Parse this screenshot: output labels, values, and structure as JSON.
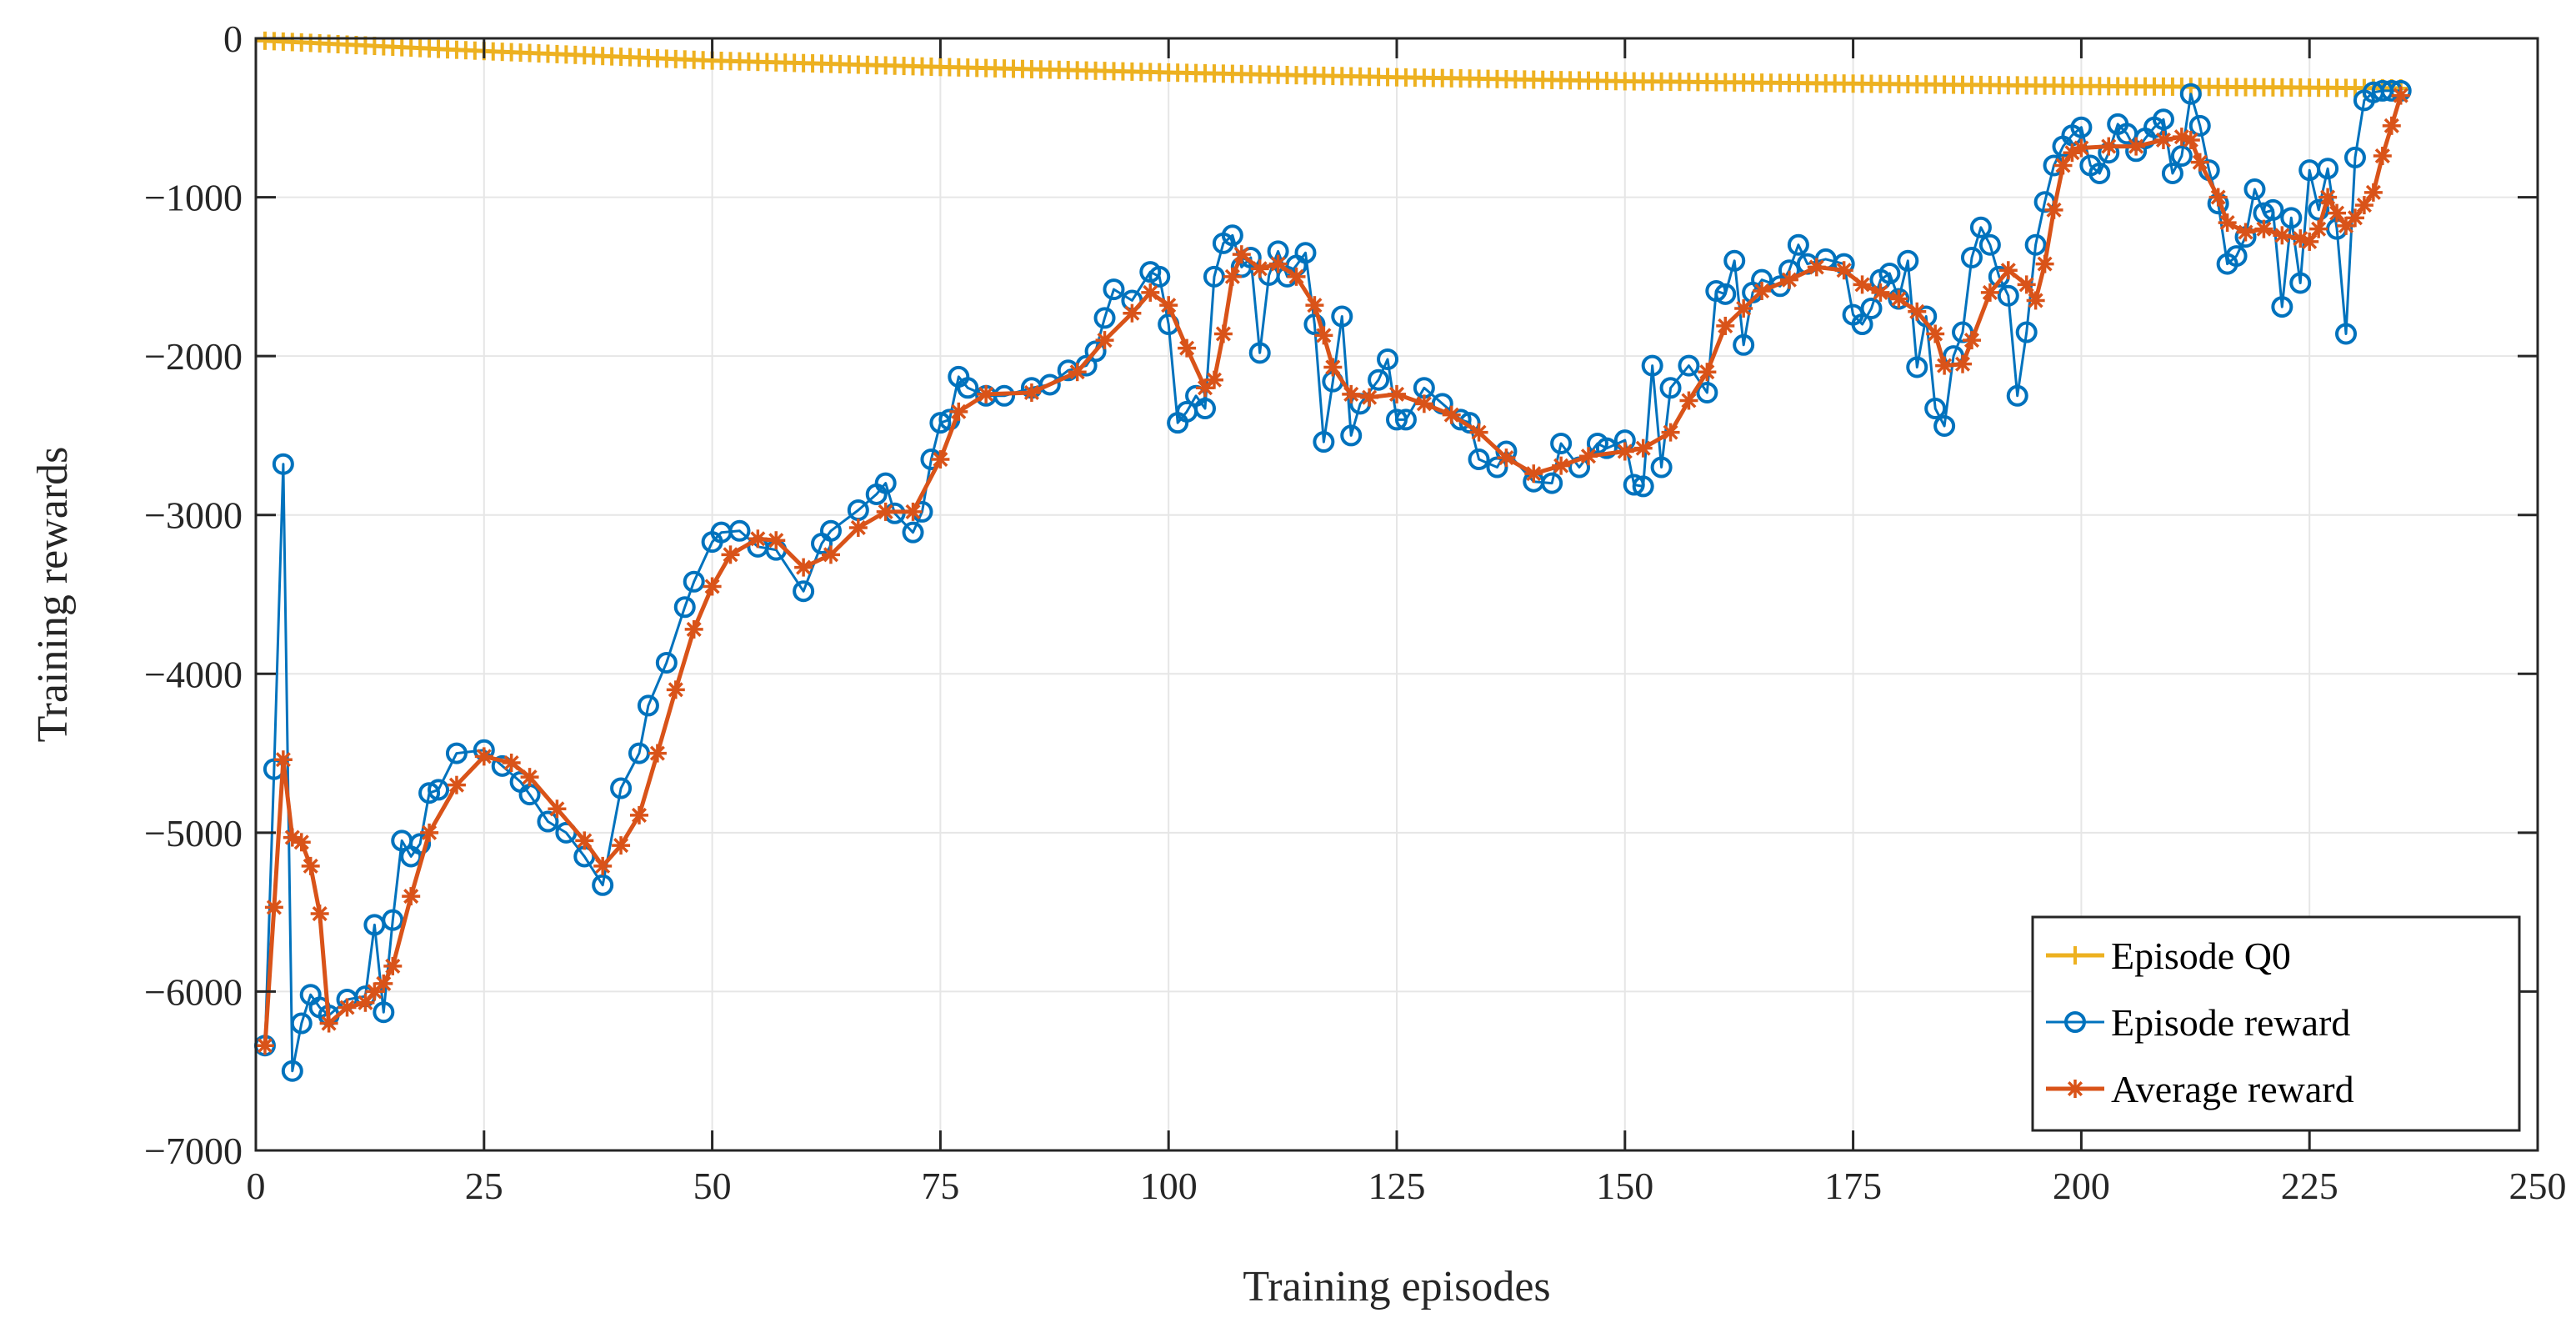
{
  "chart_data": {
    "type": "line",
    "title": "",
    "xlabel": "Training episodes",
    "ylabel": "Training rewards",
    "xlim": [
      0,
      250
    ],
    "ylim": [
      -7000,
      0
    ],
    "xticks": [
      0,
      25,
      50,
      75,
      100,
      125,
      150,
      175,
      200,
      225,
      250
    ],
    "yticks": [
      0,
      -1000,
      -2000,
      -3000,
      -4000,
      -5000,
      -6000,
      -7000
    ],
    "xtick_labels": [
      "0",
      "25",
      "50",
      "75",
      "100",
      "125",
      "150",
      "175",
      "200",
      "225",
      "250"
    ],
    "ytick_labels": [
      "0",
      "−1000",
      "−2000",
      "−3000",
      "−4000",
      "−5000",
      "−6000",
      "−7000"
    ],
    "grid": true,
    "legend_position": "bottom-right",
    "colors": {
      "q0": "#EDB120",
      "episode": "#0072BD",
      "average": "#D95319",
      "axis": "#262626",
      "grid": "#E6E6E6"
    },
    "series": [
      {
        "name": "Episode Q0",
        "marker": "plus",
        "points": [
          [
            1,
            -15
          ],
          [
            25,
            -80
          ],
          [
            50,
            -140
          ],
          [
            75,
            -180
          ],
          [
            100,
            -215
          ],
          [
            125,
            -245
          ],
          [
            150,
            -270
          ],
          [
            175,
            -285
          ],
          [
            200,
            -300
          ],
          [
            225,
            -310
          ],
          [
            235,
            -315
          ]
        ]
      },
      {
        "name": "Episode reward",
        "marker": "circle",
        "points": [
          [
            1,
            -6340
          ],
          [
            2,
            -4600
          ],
          [
            3,
            -2680
          ],
          [
            4,
            -6500
          ],
          [
            5,
            -6200
          ],
          [
            6,
            -6020
          ],
          [
            7,
            -6100
          ],
          [
            8,
            -6150
          ],
          [
            10,
            -6050
          ],
          [
            12,
            -6030
          ],
          [
            13,
            -5580
          ],
          [
            14,
            -6130
          ],
          [
            15,
            -5550
          ],
          [
            16,
            -5050
          ],
          [
            17,
            -5150
          ],
          [
            18,
            -5070
          ],
          [
            19,
            -4750
          ],
          [
            20,
            -4730
          ],
          [
            22,
            -4500
          ],
          [
            25,
            -4480
          ],
          [
            27,
            -4580
          ],
          [
            29,
            -4680
          ],
          [
            30,
            -4760
          ],
          [
            32,
            -4930
          ],
          [
            34,
            -5000
          ],
          [
            36,
            -5150
          ],
          [
            38,
            -5330
          ],
          [
            40,
            -4720
          ],
          [
            42,
            -4500
          ],
          [
            43,
            -4200
          ],
          [
            45,
            -3930
          ],
          [
            47,
            -3580
          ],
          [
            48,
            -3420
          ],
          [
            50,
            -3170
          ],
          [
            51,
            -3110
          ],
          [
            53,
            -3100
          ],
          [
            55,
            -3200
          ],
          [
            57,
            -3220
          ],
          [
            60,
            -3480
          ],
          [
            62,
            -3180
          ],
          [
            63,
            -3100
          ],
          [
            66,
            -2970
          ],
          [
            68,
            -2870
          ],
          [
            69,
            -2800
          ],
          [
            70,
            -2990
          ],
          [
            72,
            -3110
          ],
          [
            73,
            -2980
          ],
          [
            74,
            -2650
          ],
          [
            75,
            -2420
          ],
          [
            76,
            -2400
          ],
          [
            77,
            -2130
          ],
          [
            78,
            -2200
          ],
          [
            80,
            -2250
          ],
          [
            82,
            -2250
          ],
          [
            85,
            -2200
          ],
          [
            87,
            -2180
          ],
          [
            89,
            -2090
          ],
          [
            91,
            -2060
          ],
          [
            92,
            -1970
          ],
          [
            93,
            -1760
          ],
          [
            94,
            -1580
          ],
          [
            96,
            -1650
          ],
          [
            98,
            -1470
          ],
          [
            99,
            -1500
          ],
          [
            100,
            -1800
          ],
          [
            101,
            -2420
          ],
          [
            102,
            -2350
          ],
          [
            103,
            -2250
          ],
          [
            104,
            -2330
          ],
          [
            105,
            -1500
          ],
          [
            106,
            -1290
          ],
          [
            107,
            -1240
          ],
          [
            108,
            -1440
          ],
          [
            109,
            -1380
          ],
          [
            110,
            -1980
          ],
          [
            111,
            -1490
          ],
          [
            112,
            -1340
          ],
          [
            113,
            -1500
          ],
          [
            114,
            -1430
          ],
          [
            115,
            -1350
          ],
          [
            116,
            -1800
          ],
          [
            117,
            -2540
          ],
          [
            118,
            -2160
          ],
          [
            119,
            -1750
          ],
          [
            120,
            -2500
          ],
          [
            121,
            -2300
          ],
          [
            123,
            -2150
          ],
          [
            124,
            -2020
          ],
          [
            125,
            -2400
          ],
          [
            126,
            -2400
          ],
          [
            128,
            -2200
          ],
          [
            130,
            -2300
          ],
          [
            132,
            -2400
          ],
          [
            133,
            -2420
          ],
          [
            134,
            -2650
          ],
          [
            136,
            -2700
          ],
          [
            137,
            -2600
          ],
          [
            140,
            -2790
          ],
          [
            142,
            -2800
          ],
          [
            143,
            -2550
          ],
          [
            145,
            -2700
          ],
          [
            147,
            -2550
          ],
          [
            148,
            -2580
          ],
          [
            150,
            -2530
          ],
          [
            151,
            -2810
          ],
          [
            152,
            -2820
          ],
          [
            153,
            -2060
          ],
          [
            154,
            -2700
          ],
          [
            155,
            -2200
          ],
          [
            157,
            -2060
          ],
          [
            159,
            -2230
          ],
          [
            160,
            -1590
          ],
          [
            161,
            -1610
          ],
          [
            162,
            -1400
          ],
          [
            163,
            -1930
          ],
          [
            164,
            -1600
          ],
          [
            165,
            -1520
          ],
          [
            167,
            -1560
          ],
          [
            168,
            -1460
          ],
          [
            169,
            -1300
          ],
          [
            170,
            -1420
          ],
          [
            172,
            -1390
          ],
          [
            174,
            -1420
          ],
          [
            175,
            -1740
          ],
          [
            176,
            -1800
          ],
          [
            177,
            -1700
          ],
          [
            178,
            -1520
          ],
          [
            179,
            -1480
          ],
          [
            180,
            -1640
          ],
          [
            181,
            -1400
          ],
          [
            182,
            -2070
          ],
          [
            183,
            -1750
          ],
          [
            184,
            -2330
          ],
          [
            185,
            -2440
          ],
          [
            186,
            -2000
          ],
          [
            187,
            -1850
          ],
          [
            188,
            -1380
          ],
          [
            189,
            -1190
          ],
          [
            190,
            -1300
          ],
          [
            191,
            -1500
          ],
          [
            192,
            -1620
          ],
          [
            193,
            -2250
          ],
          [
            194,
            -1850
          ],
          [
            195,
            -1300
          ],
          [
            196,
            -1030
          ],
          [
            197,
            -800
          ],
          [
            198,
            -680
          ],
          [
            199,
            -610
          ],
          [
            200,
            -560
          ],
          [
            201,
            -800
          ],
          [
            202,
            -850
          ],
          [
            203,
            -720
          ],
          [
            204,
            -540
          ],
          [
            205,
            -600
          ],
          [
            206,
            -710
          ],
          [
            207,
            -630
          ],
          [
            208,
            -560
          ],
          [
            209,
            -510
          ],
          [
            210,
            -850
          ],
          [
            211,
            -740
          ],
          [
            212,
            -350
          ],
          [
            213,
            -550
          ],
          [
            214,
            -830
          ],
          [
            215,
            -1040
          ],
          [
            216,
            -1420
          ],
          [
            217,
            -1370
          ],
          [
            218,
            -1250
          ],
          [
            219,
            -950
          ],
          [
            220,
            -1100
          ],
          [
            221,
            -1080
          ],
          [
            222,
            -1690
          ],
          [
            223,
            -1130
          ],
          [
            224,
            -1540
          ],
          [
            225,
            -830
          ],
          [
            226,
            -1080
          ],
          [
            227,
            -820
          ],
          [
            228,
            -1200
          ],
          [
            229,
            -1860
          ],
          [
            230,
            -750
          ],
          [
            231,
            -390
          ],
          [
            232,
            -340
          ],
          [
            233,
            -330
          ],
          [
            234,
            -330
          ],
          [
            235,
            -330
          ]
        ]
      },
      {
        "name": "Average reward",
        "marker": "asterisk",
        "points": [
          [
            1,
            -6340
          ],
          [
            2,
            -5470
          ],
          [
            3,
            -4540
          ],
          [
            4,
            -5030
          ],
          [
            5,
            -5060
          ],
          [
            6,
            -5210
          ],
          [
            7,
            -5510
          ],
          [
            8,
            -6200
          ],
          [
            10,
            -6100
          ],
          [
            12,
            -6070
          ],
          [
            13,
            -6000
          ],
          [
            14,
            -5950
          ],
          [
            15,
            -5840
          ],
          [
            17,
            -5400
          ],
          [
            19,
            -5000
          ],
          [
            22,
            -4700
          ],
          [
            25,
            -4520
          ],
          [
            28,
            -4560
          ],
          [
            30,
            -4650
          ],
          [
            33,
            -4850
          ],
          [
            36,
            -5050
          ],
          [
            38,
            -5210
          ],
          [
            40,
            -5080
          ],
          [
            42,
            -4890
          ],
          [
            44,
            -4500
          ],
          [
            46,
            -4100
          ],
          [
            48,
            -3720
          ],
          [
            50,
            -3450
          ],
          [
            52,
            -3250
          ],
          [
            55,
            -3150
          ],
          [
            57,
            -3160
          ],
          [
            60,
            -3330
          ],
          [
            63,
            -3250
          ],
          [
            66,
            -3080
          ],
          [
            69,
            -2980
          ],
          [
            72,
            -2980
          ],
          [
            75,
            -2650
          ],
          [
            77,
            -2350
          ],
          [
            80,
            -2240
          ],
          [
            85,
            -2230
          ],
          [
            90,
            -2100
          ],
          [
            93,
            -1900
          ],
          [
            96,
            -1730
          ],
          [
            98,
            -1600
          ],
          [
            100,
            -1680
          ],
          [
            102,
            -1950
          ],
          [
            104,
            -2200
          ],
          [
            105,
            -2150
          ],
          [
            106,
            -1860
          ],
          [
            107,
            -1500
          ],
          [
            108,
            -1360
          ],
          [
            110,
            -1450
          ],
          [
            112,
            -1420
          ],
          [
            114,
            -1500
          ],
          [
            116,
            -1680
          ],
          [
            117,
            -1870
          ],
          [
            118,
            -2070
          ],
          [
            120,
            -2240
          ],
          [
            122,
            -2260
          ],
          [
            125,
            -2240
          ],
          [
            128,
            -2300
          ],
          [
            131,
            -2370
          ],
          [
            134,
            -2480
          ],
          [
            137,
            -2640
          ],
          [
            140,
            -2740
          ],
          [
            143,
            -2690
          ],
          [
            146,
            -2630
          ],
          [
            150,
            -2600
          ],
          [
            152,
            -2580
          ],
          [
            155,
            -2480
          ],
          [
            157,
            -2280
          ],
          [
            159,
            -2100
          ],
          [
            161,
            -1810
          ],
          [
            163,
            -1700
          ],
          [
            165,
            -1590
          ],
          [
            168,
            -1520
          ],
          [
            171,
            -1440
          ],
          [
            174,
            -1460
          ],
          [
            176,
            -1550
          ],
          [
            178,
            -1600
          ],
          [
            180,
            -1640
          ],
          [
            182,
            -1720
          ],
          [
            184,
            -1860
          ],
          [
            185,
            -2060
          ],
          [
            187,
            -2050
          ],
          [
            188,
            -1900
          ],
          [
            190,
            -1600
          ],
          [
            192,
            -1460
          ],
          [
            194,
            -1550
          ],
          [
            195,
            -1650
          ],
          [
            196,
            -1420
          ],
          [
            197,
            -1080
          ],
          [
            198,
            -800
          ],
          [
            199,
            -720
          ],
          [
            200,
            -690
          ],
          [
            203,
            -680
          ],
          [
            206,
            -680
          ],
          [
            209,
            -640
          ],
          [
            211,
            -620
          ],
          [
            212,
            -640
          ],
          [
            213,
            -780
          ],
          [
            215,
            -1000
          ],
          [
            216,
            -1160
          ],
          [
            218,
            -1220
          ],
          [
            220,
            -1200
          ],
          [
            222,
            -1240
          ],
          [
            224,
            -1260
          ],
          [
            225,
            -1280
          ],
          [
            226,
            -1200
          ],
          [
            227,
            -1000
          ],
          [
            228,
            -1100
          ],
          [
            229,
            -1180
          ],
          [
            230,
            -1130
          ],
          [
            231,
            -1050
          ],
          [
            232,
            -970
          ],
          [
            233,
            -740
          ],
          [
            234,
            -550
          ],
          [
            235,
            -360
          ]
        ]
      }
    ]
  }
}
